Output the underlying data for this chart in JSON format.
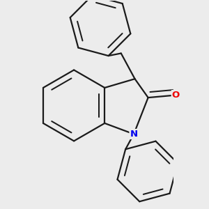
{
  "bg_color": "#ececec",
  "bond_color": "#1a1a1a",
  "bond_width": 1.6,
  "dbo": 0.055,
  "atom_N_color": "#0000ee",
  "atom_O_color": "#ee0000",
  "font_size_atom": 9.5,
  "fig_width": 3.0,
  "fig_height": 3.0,
  "dpi": 100,
  "xlim": [
    -1.2,
    1.6
  ],
  "ylim": [
    -2.0,
    2.2
  ]
}
